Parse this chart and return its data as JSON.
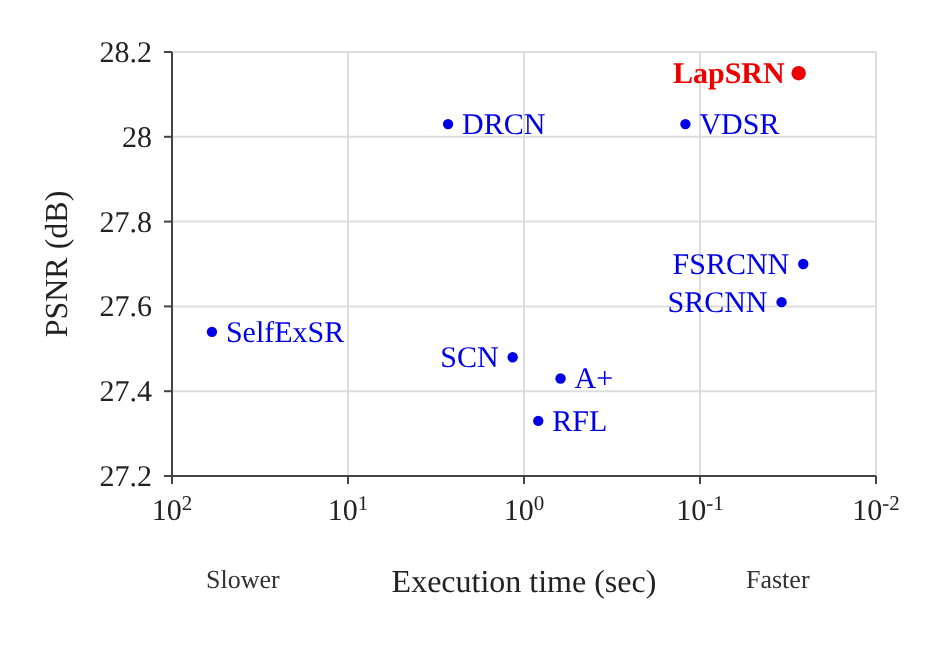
{
  "chart_data": {
    "type": "scatter",
    "xlabel": "Execution time (sec)",
    "ylabel": "PSNR (dB)",
    "log": "x",
    "grid": true,
    "marker": "circle",
    "xlim": [
      100,
      0.01
    ],
    "xticks": [
      {
        "value": 100,
        "label": "10$^{2}$"
      },
      {
        "value": 10,
        "label": "10$^{1}$"
      },
      {
        "value": 1,
        "label": "10$^{0}$"
      },
      {
        "value": 0.1,
        "label": "10$^{-1}$"
      },
      {
        "value": 0.01,
        "label": "10$^{-2}$"
      }
    ],
    "ylim": [
      27.2,
      28.2
    ],
    "yticks": [
      27.2,
      27.4,
      27.6,
      27.8,
      28,
      28.2
    ],
    "series": [
      {
        "color": "#0000e6",
        "x": [
          59.3,
          2.7,
          1.16,
          0.62,
          0.83,
          0.121,
          0.0259,
          0.0344
        ],
        "values": [
          27.54,
          28.03,
          27.48,
          27.43,
          27.33,
          28.03,
          27.7,
          27.61
        ]
      },
      {
        "color": "#ee0000",
        "x": [
          0.0275
        ],
        "values": [
          28.15
        ]
      }
    ],
    "annotations": [
      {
        "text": "SelfExSR",
        "x": 59.3,
        "y": 27.54
      },
      {
        "text": "DRCN",
        "x": 2.7,
        "y": 28.03
      },
      {
        "text": "SCN",
        "x": 1.16,
        "y": 27.48
      },
      {
        "text": "A+",
        "x": 0.62,
        "y": 27.43
      },
      {
        "text": "RFL",
        "x": 0.83,
        "y": 27.33
      },
      {
        "text": "VDSR",
        "x": 0.121,
        "y": 28.03
      },
      {
        "text": "FSRCNN",
        "x": 0.0259,
        "y": 27.7
      },
      {
        "text": "SRCNN",
        "x": 0.0344,
        "y": 27.61
      },
      {
        "text": "LapSRN",
        "x": 0.0275,
        "y": 28.15
      },
      "Slower",
      "Faster"
    ]
  }
}
